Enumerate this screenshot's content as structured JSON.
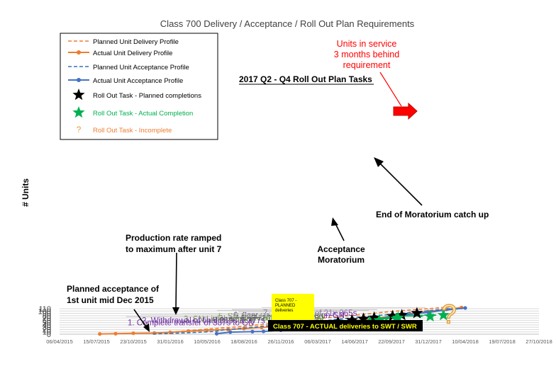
{
  "chart_data": {
    "type": "line",
    "title": "Class 700 Delivery / Acceptance / Roll Out Plan Requirements",
    "ylabel": "# Units",
    "xlabel": "",
    "ylim": [
      0,
      118
    ],
    "xlim": [
      "2015-04-06",
      "2018-10-27"
    ],
    "y_ticks": [
      0,
      10,
      20,
      30,
      40,
      50,
      60,
      70,
      80,
      90,
      100,
      110
    ],
    "x_tick_labels": [
      "06/04/2015",
      "15/07/2015",
      "23/10/2015",
      "31/01/2016",
      "10/05/2016",
      "18/08/2016",
      "26/11/2016",
      "06/03/2017",
      "14/06/2017",
      "22/09/2017",
      "31/12/2017",
      "10/04/2018",
      "19/07/2018",
      "27/10/2018"
    ],
    "x_tick_dates": [
      "2015-04-06",
      "2015-07-15",
      "2015-10-23",
      "2016-01-31",
      "2016-05-10",
      "2016-08-18",
      "2016-11-26",
      "2017-03-06",
      "2017-06-14",
      "2017-09-22",
      "2017-12-31",
      "2018-04-10",
      "2018-07-19",
      "2018-10-27"
    ],
    "grid": {
      "horizontal": true,
      "vertical": false
    },
    "legend_position": "top-left",
    "colors": {
      "planned_delivery": "#ED7D31",
      "actual_delivery": "#ED7D31",
      "planned_acceptance": "#2E75B6",
      "actual_acceptance": "#4472C4",
      "planned_star": "#000000",
      "actual_star": "#00B050",
      "incomplete": "#E0A040"
    },
    "legend": [
      {
        "label": "Planned Unit Delivery Profile",
        "style": "dashed",
        "color": "#ED7D31"
      },
      {
        "label": "Actual Unit Delivery Profile",
        "style": "line-marker",
        "color": "#ED7D31"
      },
      {
        "label": "Planned Unit Acceptance Profile",
        "style": "dashed",
        "color": "#2E75B6"
      },
      {
        "label": "Actual Unit Acceptance Profile",
        "style": "line-marker",
        "color": "#4472C4"
      },
      {
        "label": "Roll Out Task - Planned completions",
        "style": "star",
        "color": "#000000"
      },
      {
        "label": "Roll Out Task - Actual Completion",
        "style": "star",
        "color": "#00B050"
      },
      {
        "label": "Roll Out Task - Incomplete",
        "style": "question",
        "color": "#E0A040"
      }
    ],
    "series": [
      {
        "name": "Planned Unit Delivery Profile",
        "points": [
          [
            "2016-01-15",
            6
          ],
          [
            "2016-05-10",
            22
          ],
          [
            "2016-08-18",
            34
          ],
          [
            "2016-11-26",
            50
          ],
          [
            "2017-03-06",
            67
          ],
          [
            "2017-06-14",
            82
          ],
          [
            "2017-09-22",
            98
          ],
          [
            "2017-12-31",
            110
          ],
          [
            "2018-02-26",
            117
          ]
        ]
      },
      {
        "name": "Actual Unit Delivery Profile",
        "points": [
          [
            "2015-07-24",
            1
          ],
          [
            "2015-09-05",
            2
          ],
          [
            "2015-10-23",
            4
          ],
          [
            "2015-12-19",
            5
          ],
          [
            "2016-01-31",
            8
          ],
          [
            "2016-03-20",
            13
          ],
          [
            "2016-05-10",
            17
          ],
          [
            "2016-07-06",
            20
          ],
          [
            "2016-08-18",
            24
          ],
          [
            "2016-10-05",
            29
          ],
          [
            "2016-11-26",
            34
          ],
          [
            "2017-01-20",
            39
          ],
          [
            "2017-03-06",
            44
          ],
          [
            "2017-04-25",
            50
          ],
          [
            "2017-06-14",
            58
          ],
          [
            "2017-08-01",
            66
          ],
          [
            "2017-09-22",
            78
          ],
          [
            "2017-11-10",
            89
          ],
          [
            "2017-12-31",
            98
          ],
          [
            "2018-02-18",
            107
          ],
          [
            "2018-03-31",
            115
          ]
        ]
      },
      {
        "name": "Planned Unit Acceptance Profile",
        "points": [
          [
            "2015-12-15",
            1
          ],
          [
            "2016-03-20",
            6
          ],
          [
            "2016-06-01",
            12
          ],
          [
            "2016-06-25",
            19
          ],
          [
            "2016-08-18",
            26
          ],
          [
            "2016-11-26",
            41
          ],
          [
            "2017-03-06",
            55
          ],
          [
            "2017-06-14",
            72
          ],
          [
            "2017-09-22",
            86
          ],
          [
            "2017-12-31",
            101
          ],
          [
            "2018-03-20",
            113
          ]
        ]
      },
      {
        "name": "Actual Unit Acceptance Profile",
        "points": [
          [
            "2016-06-05",
            2
          ],
          [
            "2016-07-12",
            9
          ],
          [
            "2016-09-10",
            11
          ],
          [
            "2016-10-10",
            12
          ],
          [
            "2016-11-26",
            17
          ],
          [
            "2017-01-10",
            22
          ],
          [
            "2017-02-10",
            28
          ],
          [
            "2017-03-06",
            37
          ],
          [
            "2017-04-15",
            44
          ],
          [
            "2017-06-01",
            44
          ],
          [
            "2017-07-01",
            45
          ],
          [
            "2017-07-10",
            53
          ],
          [
            "2017-08-15",
            66
          ],
          [
            "2017-09-22",
            76
          ],
          [
            "2017-11-01",
            85
          ],
          [
            "2017-12-01",
            89
          ],
          [
            "2017-12-31",
            94
          ],
          [
            "2018-02-10",
            103
          ],
          [
            "2018-04-10",
            113
          ]
        ]
      }
    ],
    "planned_stars": [
      [
        "2017-04-30",
        53
      ],
      [
        "2017-06-07",
        60
      ],
      [
        "2017-07-08",
        66
      ],
      [
        "2017-08-06",
        71
      ],
      [
        "2017-09-25",
        78
      ],
      [
        "2017-10-20",
        82
      ],
      [
        "2017-11-30",
        91
      ]
    ],
    "actual_stars": [
      [
        "2017-07-25",
        53
      ],
      [
        "2017-08-20",
        60
      ],
      [
        "2017-10-05",
        66
      ],
      [
        "2017-10-10",
        71
      ],
      [
        "2018-01-05",
        77
      ],
      [
        "2018-02-10",
        82
      ]
    ],
    "incomplete_mark": {
      "x": "2018-02-25",
      "y": 90,
      "label": "?"
    },
    "annotations": {
      "units_in_service": [
        "Units in service",
        "3 months behind",
        "requirement"
      ],
      "rollout_header": "2017 Q2 - Q4 Roll Out Plan Tasks",
      "tasks": [
        {
          "label": "7. Withdrawal of 21x 365s",
          "color": "#7030A0",
          "y": 91
        },
        {
          "label": "6. 8car --> 12car swaps on GN",
          "color": "#7030A0",
          "y": 82
        },
        {
          "label": "5. SN East Grinstead --> 700",
          "color": "#548235",
          "y": 78
        },
        {
          "label": "4. SN Horsham --> 700",
          "color": "#548235",
          "y": 72
        },
        {
          "label": "3. SN Littlehampton --> 700",
          "color": "#548235",
          "y": 66
        },
        {
          "label": "2. Withdrawal of final 319s & 377s",
          "color": "#7030A0",
          "y": 60
        },
        {
          "label": "1. Complete transfer of 387s to GN",
          "color": "#7030A0",
          "y": 51
        }
      ],
      "end_moratorium": "End of Moratorium catch up",
      "acceptance_moratorium": [
        "Acceptance",
        "Moratorium"
      ],
      "production_rate": [
        "Production rate ramped",
        "to maximum after unit 7"
      ],
      "planned_acceptance": [
        "Planned acceptance of",
        "1st unit mid Dec 2015"
      ],
      "class707_planned": [
        "Class 707 -",
        "PLANNED",
        "deliveries"
      ],
      "class707_actual": "Class 707 - ACTUAL deliveries to SWT / SWR"
    }
  }
}
